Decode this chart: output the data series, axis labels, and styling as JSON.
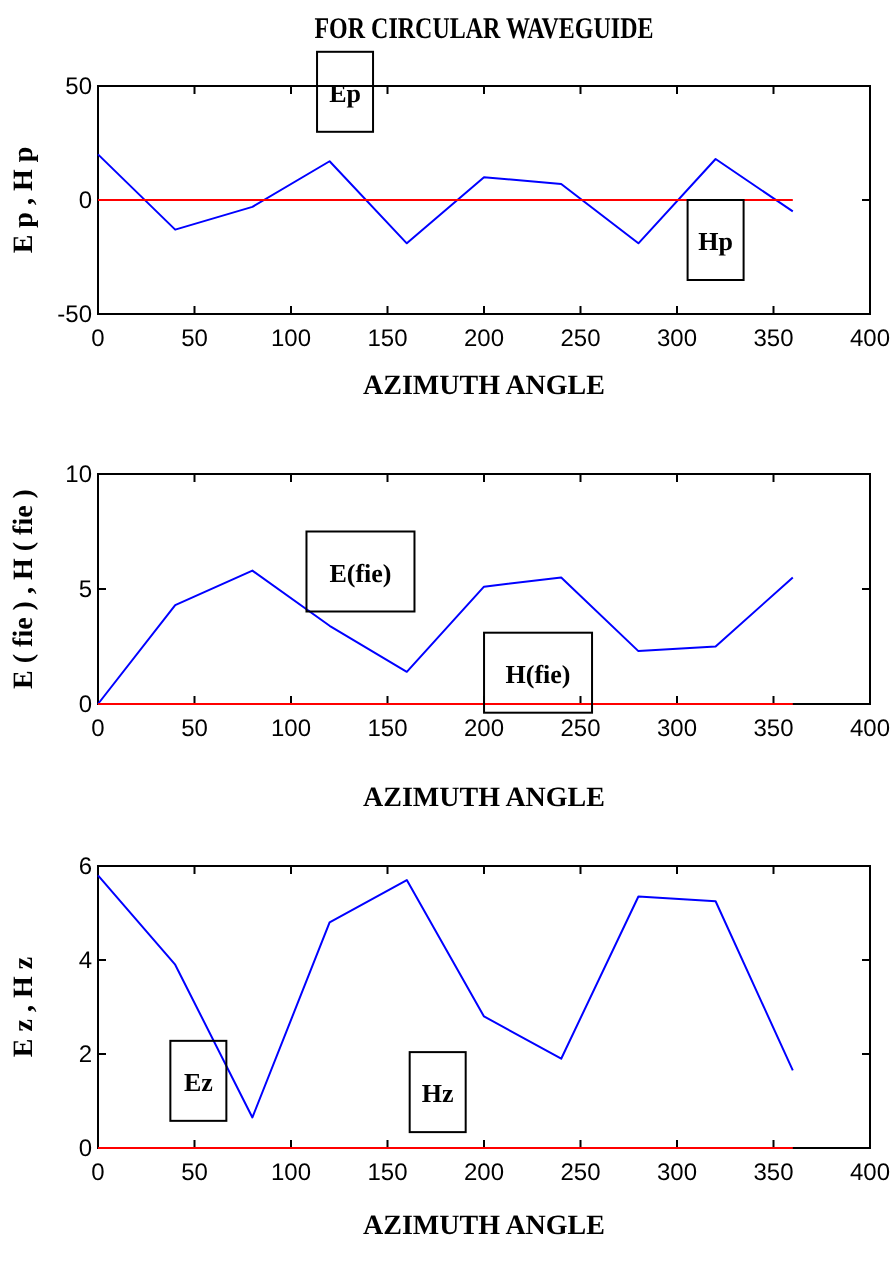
{
  "chart_data": [
    {
      "type": "line",
      "title": "FOR CIRCULAR WAVEGUIDE",
      "xlabel": "AZIMUTH ANGLE",
      "ylabel": "E p , H p",
      "x": [
        0,
        40,
        80,
        120,
        160,
        200,
        240,
        280,
        320,
        360
      ],
      "series": [
        {
          "color": "#0000ff",
          "values": [
            20,
            -13,
            -3,
            17,
            -19,
            10,
            7,
            -19,
            18,
            -5
          ]
        },
        {
          "color": "#ff0000",
          "values": [
            0,
            0,
            0,
            0,
            0,
            0,
            0,
            0,
            0,
            0
          ]
        }
      ],
      "xlim": [
        0,
        400
      ],
      "xticks": [
        0,
        50,
        100,
        150,
        200,
        250,
        300,
        350,
        400
      ],
      "ylim": [
        -50,
        50
      ],
      "yticks": [
        -50,
        0,
        50
      ],
      "annotations": [
        "Ep",
        "Hp"
      ]
    },
    {
      "type": "line",
      "xlabel": "AZIMUTH ANGLE",
      "ylabel": "E ( fie ) , H ( fie )",
      "x": [
        0,
        40,
        80,
        120,
        160,
        200,
        240,
        280,
        320,
        360
      ],
      "series": [
        {
          "color": "#0000ff",
          "values": [
            0,
            4.3,
            5.8,
            3.4,
            1.4,
            5.1,
            5.5,
            2.3,
            2.5,
            5.5
          ]
        },
        {
          "color": "#ff0000",
          "values": [
            0,
            0,
            0,
            0,
            0,
            0,
            0,
            0,
            0,
            0
          ]
        }
      ],
      "xlim": [
        0,
        400
      ],
      "xticks": [
        0,
        50,
        100,
        150,
        200,
        250,
        300,
        350,
        400
      ],
      "ylim": [
        0,
        10
      ],
      "yticks": [
        0,
        5,
        10
      ],
      "annotations": [
        "E(fie)",
        "H(fie)"
      ]
    },
    {
      "type": "line",
      "xlabel": "AZIMUTH ANGLE",
      "ylabel": "E z , H z",
      "x": [
        0,
        40,
        80,
        120,
        160,
        200,
        240,
        280,
        320,
        360
      ],
      "series": [
        {
          "color": "#0000ff",
          "values": [
            5.8,
            3.9,
            0.65,
            4.8,
            5.7,
            2.8,
            1.9,
            5.35,
            5.25,
            1.65
          ]
        },
        {
          "color": "#ff0000",
          "values": [
            0,
            0,
            0,
            0,
            0,
            0,
            0,
            0,
            0,
            0
          ]
        }
      ],
      "xlim": [
        0,
        400
      ],
      "xticks": [
        0,
        50,
        100,
        150,
        200,
        250,
        300,
        350,
        400
      ],
      "ylim": [
        0,
        6
      ],
      "yticks": [
        0,
        2,
        4,
        6
      ],
      "annotations": [
        "Ez",
        "Hz"
      ]
    }
  ]
}
